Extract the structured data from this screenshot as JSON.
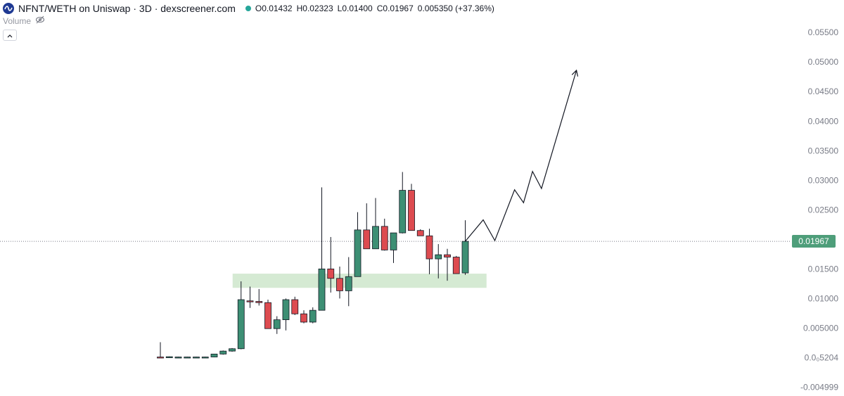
{
  "header": {
    "title": "NFNT/WETH on Uniswap · 3D · dexscreener.com",
    "ohlc": {
      "o_label": "O",
      "o_value": "0.01432",
      "h_label": "H",
      "h_value": "0.02323",
      "l_label": "L",
      "l_value": "0.01400",
      "c_label": "C",
      "c_value": "0.01967",
      "change": "0.005350 (+37.36%)"
    },
    "status_color": "#26a69a",
    "logo_icon": "uniswap-logo-icon"
  },
  "volume_row": {
    "label": "Volume",
    "icon": "eye-crossed-icon"
  },
  "collapse_button": {
    "icon": "chevron-up-icon"
  },
  "colors": {
    "up": "#3d8f74",
    "down": "#dd4b50",
    "zone": "#d5ead3",
    "price_tag": "#4e9e7a"
  },
  "chart_data": {
    "type": "candlestick",
    "price_axis": {
      "ticks": [
        {
          "value": 0.055,
          "label": "0.05500"
        },
        {
          "value": 0.05,
          "label": "0.05000"
        },
        {
          "value": 0.045,
          "label": "0.04500"
        },
        {
          "value": 0.04,
          "label": "0.04000"
        },
        {
          "value": 0.035,
          "label": "0.03500"
        },
        {
          "value": 0.03,
          "label": "0.03000"
        },
        {
          "value": 0.025,
          "label": "0.02500"
        },
        {
          "value": 0.015,
          "label": "0.01500"
        },
        {
          "value": 0.01,
          "label": "0.01000"
        },
        {
          "value": 0.005,
          "label": "0.005000"
        },
        {
          "value": 5.2e-06,
          "label": "0.0₀5204"
        },
        {
          "value": -0.004999,
          "label": "-0.004999"
        }
      ],
      "range": [
        -0.0065,
        0.0605
      ]
    },
    "last_price": {
      "value": 0.01967,
      "label": "0.01967"
    },
    "candles": [
      {
        "o": 0.0001,
        "h": 0.0026,
        "l": 0.0,
        "c": 5e-05
      },
      {
        "o": 0.00015,
        "h": 0.0002,
        "l": 0.0001,
        "c": 0.00015
      },
      {
        "o": 0.0001,
        "h": 0.00015,
        "l": 5e-05,
        "c": 0.0001
      },
      {
        "o": 0.0001,
        "h": 0.00015,
        "l": 5e-05,
        "c": 0.0001
      },
      {
        "o": 0.0001,
        "h": 0.00015,
        "l": 5e-05,
        "c": 0.0001
      },
      {
        "o": 0.0001,
        "h": 0.00015,
        "l": 5e-05,
        "c": 0.0001
      },
      {
        "o": 0.0001,
        "h": 0.0006,
        "l": 5e-05,
        "c": 0.0006
      },
      {
        "o": 0.0006,
        "h": 0.0012,
        "l": 0.0005,
        "c": 0.0011
      },
      {
        "o": 0.0011,
        "h": 0.0016,
        "l": 0.001,
        "c": 0.0015
      },
      {
        "o": 0.0015,
        "h": 0.0129,
        "l": 0.0014,
        "c": 0.0098
      },
      {
        "o": 0.0096,
        "h": 0.012,
        "l": 0.0084,
        "c": 0.0095
      },
      {
        "o": 0.0095,
        "h": 0.0116,
        "l": 0.0088,
        "c": 0.0093
      },
      {
        "o": 0.0093,
        "h": 0.0098,
        "l": 0.0049,
        "c": 0.0049
      },
      {
        "o": 0.0049,
        "h": 0.007,
        "l": 0.004,
        "c": 0.0064
      },
      {
        "o": 0.0064,
        "h": 0.01,
        "l": 0.0046,
        "c": 0.0098
      },
      {
        "o": 0.0098,
        "h": 0.0103,
        "l": 0.0072,
        "c": 0.0074
      },
      {
        "o": 0.0074,
        "h": 0.008,
        "l": 0.0058,
        "c": 0.006
      },
      {
        "o": 0.006,
        "h": 0.0085,
        "l": 0.0058,
        "c": 0.008
      },
      {
        "o": 0.008,
        "h": 0.0288,
        "l": 0.008,
        "c": 0.015
      },
      {
        "o": 0.015,
        "h": 0.0204,
        "l": 0.011,
        "c": 0.0134
      },
      {
        "o": 0.0134,
        "h": 0.0154,
        "l": 0.01,
        "c": 0.0113
      },
      {
        "o": 0.0113,
        "h": 0.017,
        "l": 0.0087,
        "c": 0.0137
      },
      {
        "o": 0.0137,
        "h": 0.0246,
        "l": 0.0137,
        "c": 0.0216
      },
      {
        "o": 0.0216,
        "h": 0.0261,
        "l": 0.0184,
        "c": 0.0184
      },
      {
        "o": 0.0184,
        "h": 0.027,
        "l": 0.0184,
        "c": 0.0222
      },
      {
        "o": 0.0222,
        "h": 0.0235,
        "l": 0.0181,
        "c": 0.0182
      },
      {
        "o": 0.0182,
        "h": 0.0211,
        "l": 0.016,
        "c": 0.0211
      },
      {
        "o": 0.0211,
        "h": 0.0314,
        "l": 0.021,
        "c": 0.0283
      },
      {
        "o": 0.0283,
        "h": 0.0294,
        "l": 0.0215,
        "c": 0.0215
      },
      {
        "o": 0.0215,
        "h": 0.0217,
        "l": 0.0206,
        "c": 0.0206
      },
      {
        "o": 0.0206,
        "h": 0.0218,
        "l": 0.0141,
        "c": 0.0167
      },
      {
        "o": 0.0167,
        "h": 0.0192,
        "l": 0.0134,
        "c": 0.0174
      },
      {
        "o": 0.0174,
        "h": 0.0184,
        "l": 0.013,
        "c": 0.017
      },
      {
        "o": 0.017,
        "h": 0.0172,
        "l": 0.0142,
        "c": 0.0142
      },
      {
        "o": 0.01432,
        "h": 0.02323,
        "l": 0.014,
        "c": 0.01967
      }
    ],
    "support_zone": {
      "from_candle": 9,
      "to_candle": 37,
      "low": 0.0118,
      "high": 0.0142
    },
    "projection": {
      "points": [
        {
          "candle": 34,
          "price": 0.01967
        },
        {
          "candle": 36,
          "price": 0.0233
        },
        {
          "candle": 37.3,
          "price": 0.0198
        },
        {
          "candle": 39.5,
          "price": 0.0284
        },
        {
          "candle": 40.5,
          "price": 0.0262
        },
        {
          "candle": 41.5,
          "price": 0.0315
        },
        {
          "candle": 42.5,
          "price": 0.0286
        },
        {
          "candle": 46.4,
          "price": 0.0486
        }
      ],
      "arrow": true
    }
  }
}
